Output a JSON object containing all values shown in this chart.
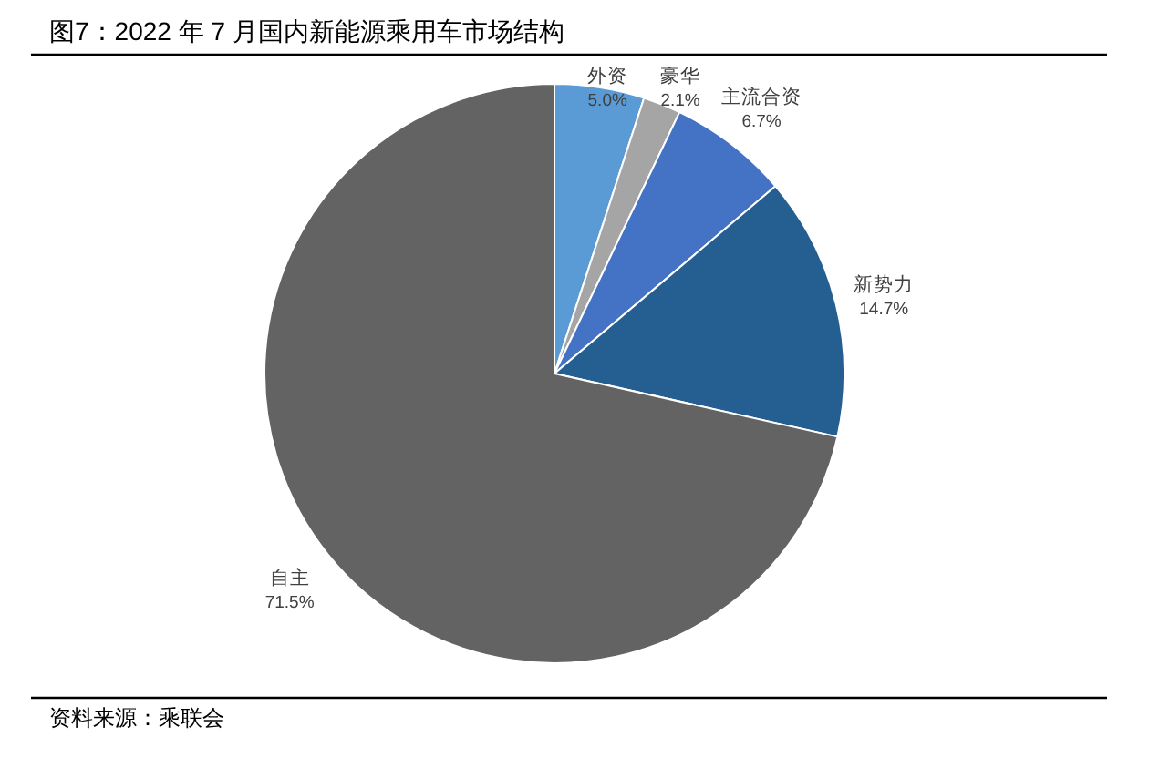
{
  "chart_data": {
    "type": "pie",
    "title": "图7：2022 年 7 月国内新能源乘用车市场结构",
    "categories": [
      "外资",
      "豪华",
      "主流合资",
      "新势力",
      "自主"
    ],
    "values": [
      5.0,
      2.1,
      6.7,
      14.7,
      71.5
    ],
    "colors": [
      "#5b9bd5",
      "#a5a5a5",
      "#4472c4",
      "#255e91",
      "#636363"
    ],
    "value_labels": [
      "5.0%",
      "2.1%",
      "6.7%",
      "14.7%",
      "71.5%"
    ],
    "annotations": [
      "资料来源：乘联会"
    ]
  }
}
